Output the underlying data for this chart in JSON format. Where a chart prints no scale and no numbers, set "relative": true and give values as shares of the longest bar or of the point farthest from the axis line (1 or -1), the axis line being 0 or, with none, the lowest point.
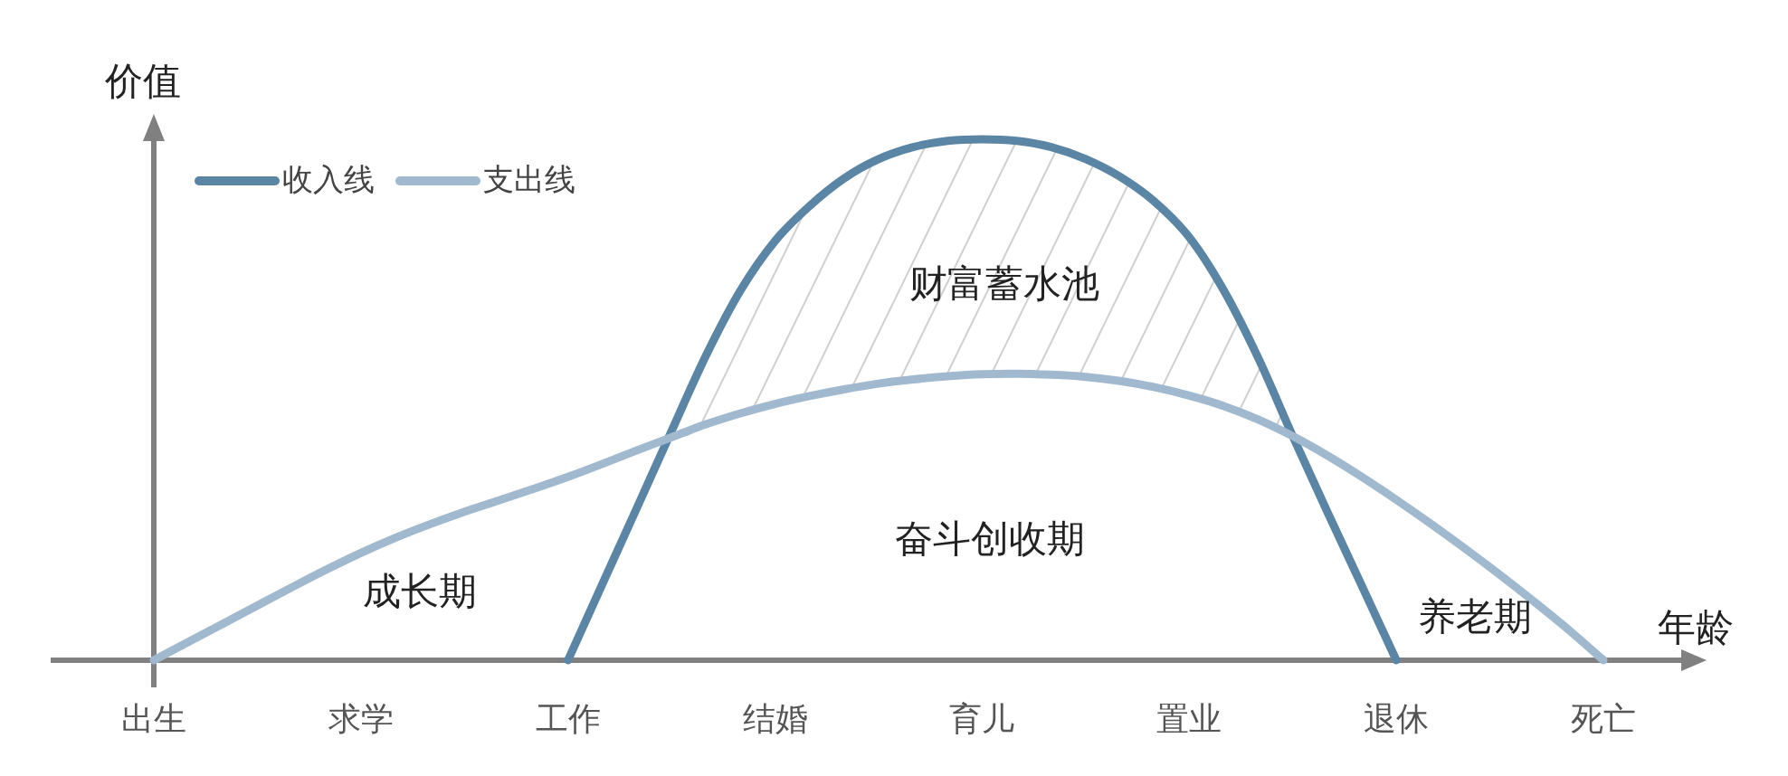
{
  "chart_data": {
    "type": "line",
    "relative": true,
    "ylabel": "价值",
    "xlabel": "年龄",
    "legend": "top left",
    "categories": [
      "出生",
      null,
      null,
      null,
      null,
      null,
      "求学",
      null,
      null,
      null,
      null,
      null,
      "工作",
      null,
      null,
      null,
      null,
      null,
      "结婚",
      null,
      null,
      null,
      null,
      null,
      "育儿",
      null,
      null,
      null,
      null,
      null,
      "置业",
      null,
      null,
      null,
      null,
      null,
      "退休",
      null,
      null,
      null,
      null,
      null,
      "死亡"
    ],
    "series": [
      {
        "name": "收入线",
        "color": "#5a85a4",
        "values": [
          null,
          null,
          null,
          null,
          null,
          null,
          null,
          null,
          null,
          null,
          null,
          null,
          0,
          0.147,
          0.293,
          0.44,
          0.585,
          0.71,
          0.805,
          0.872,
          0.925,
          0.962,
          0.985,
          0.997,
          1,
          0.997,
          0.985,
          0.962,
          0.928,
          0.88,
          0.812,
          0.71,
          0.58,
          0.43,
          0.285,
          0.143,
          0,
          null,
          null,
          null,
          null,
          null,
          null
        ]
      },
      {
        "name": "支出线",
        "color": "#a0b9cf",
        "values": [
          0,
          0.035,
          0.07,
          0.105,
          0.14,
          0.174,
          0.206,
          0.235,
          0.261,
          0.285,
          0.307,
          0.329,
          0.352,
          0.377,
          0.403,
          0.428,
          0.453,
          0.474,
          0.492,
          0.507,
          0.52,
          0.531,
          0.539,
          0.545,
          0.549,
          0.55,
          0.548,
          0.544,
          0.536,
          0.524,
          0.508,
          0.488,
          0.462,
          0.43,
          0.393,
          0.352,
          0.308,
          0.262,
          0.214,
          0.164,
          0.112,
          0.058,
          0
        ]
      }
    ],
    "annotations": [
      "财富蓄水池",
      "奋斗创收期",
      "成长期",
      "养老期"
    ]
  }
}
